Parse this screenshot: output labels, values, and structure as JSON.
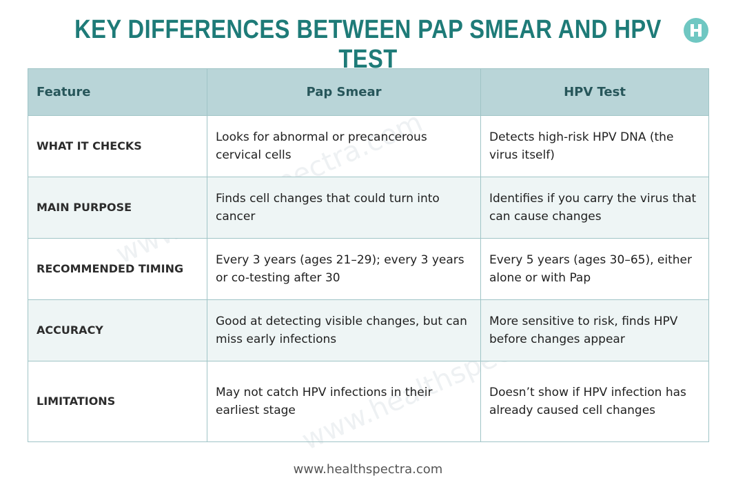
{
  "title": "KEY DIFFERENCES BETWEEN PAP SMEAR AND HPV TEST",
  "logo_letter": "H",
  "table": {
    "headers": [
      "Feature",
      "Pap Smear",
      "HPV Test"
    ],
    "rows": [
      {
        "feature": "WHAT IT CHECKS",
        "pap": "Looks for abnormal or precancerous cervical cells",
        "hpv": "Detects high-risk HPV DNA (the virus itself)"
      },
      {
        "feature": "MAIN PURPOSE",
        "pap": "Finds cell changes that could turn into cancer",
        "hpv": "Identifies if you carry the virus that can cause changes"
      },
      {
        "feature": "RECOMMENDED TIMING",
        "pap": "Every 3 years (ages 21–29); every 3 years or co-testing after 30",
        "hpv": "Every 5 years (ages 30–65), either alone or with Pap"
      },
      {
        "feature": "ACCURACY",
        "pap": "Good at detecting visible changes, but can miss early infections",
        "hpv": "More sensitive to risk, finds HPV before changes appear"
      },
      {
        "feature": "LIMITATIONS",
        "pap": "May not catch HPV infections in their earliest stage",
        "hpv": "Doesn’t show if HPV infection has already caused cell changes"
      }
    ]
  },
  "watermark": "www.healthspectra.com",
  "footer": "www.healthspectra.com",
  "colors": {
    "title": "#1e7b78",
    "header_bg": "#b9d5d8",
    "alt_row_bg": "#eef5f5",
    "logo_bg": "#6fc7c2"
  }
}
